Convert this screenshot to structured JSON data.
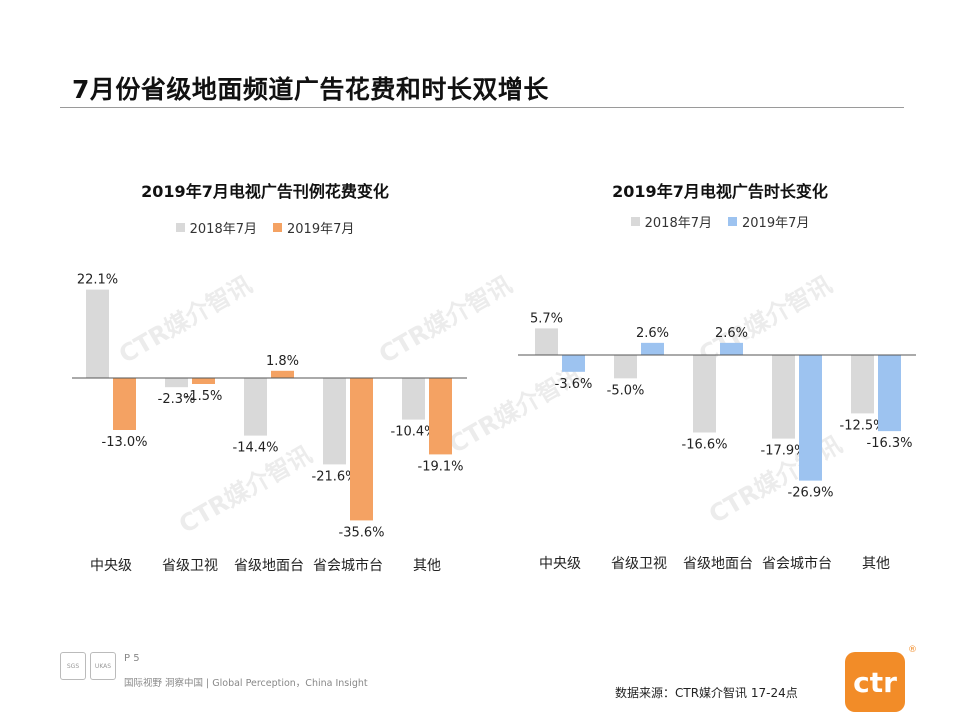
{
  "slide": {
    "title": "7月份省级地面频道广告花费和时长双增长",
    "watermark": "CTR媒介智讯",
    "page_number": "P 5",
    "slogan": "国际视野 洞察中国 | Global Perception，China Insight",
    "source": "数据来源：CTR媒介智讯    17-24点",
    "brand_logo_text": "ctr",
    "brand_reg_mark": "®",
    "cert_badges": [
      "SGS",
      "UKAS"
    ]
  },
  "chart_data": [
    {
      "type": "bar",
      "title": "2019年7月电视广告刊例花费变化",
      "categories": [
        "中央级",
        "省级卫视",
        "省级地面台",
        "省会城市台",
        "其他"
      ],
      "series": [
        {
          "name": "2018年7月",
          "color": "#d9d9d9",
          "values": [
            22.1,
            -2.3,
            -14.4,
            -21.6,
            -10.4
          ]
        },
        {
          "name": "2019年7月",
          "color": "#f4a263",
          "values": [
            -13.0,
            -1.5,
            1.8,
            -35.6,
            -19.1
          ]
        }
      ],
      "ylim": [
        -40,
        25
      ],
      "unit": "%",
      "grid": false,
      "legend_position": "top-center"
    },
    {
      "type": "bar",
      "title": "2019年7月电视广告时长变化",
      "categories": [
        "中央级",
        "省级卫视",
        "省级地面台",
        "省会城市台",
        "其他"
      ],
      "series": [
        {
          "name": "2018年7月",
          "color": "#d9d9d9",
          "values": [
            5.7,
            -5.0,
            -16.6,
            -17.9,
            -12.5
          ]
        },
        {
          "name": "2019年7月",
          "color": "#9dc3f0",
          "values": [
            -3.6,
            2.6,
            2.6,
            -26.9,
            -16.3
          ]
        }
      ],
      "ylim": [
        -30,
        8
      ],
      "unit": "%",
      "grid": false,
      "legend_position": "top-center"
    }
  ]
}
